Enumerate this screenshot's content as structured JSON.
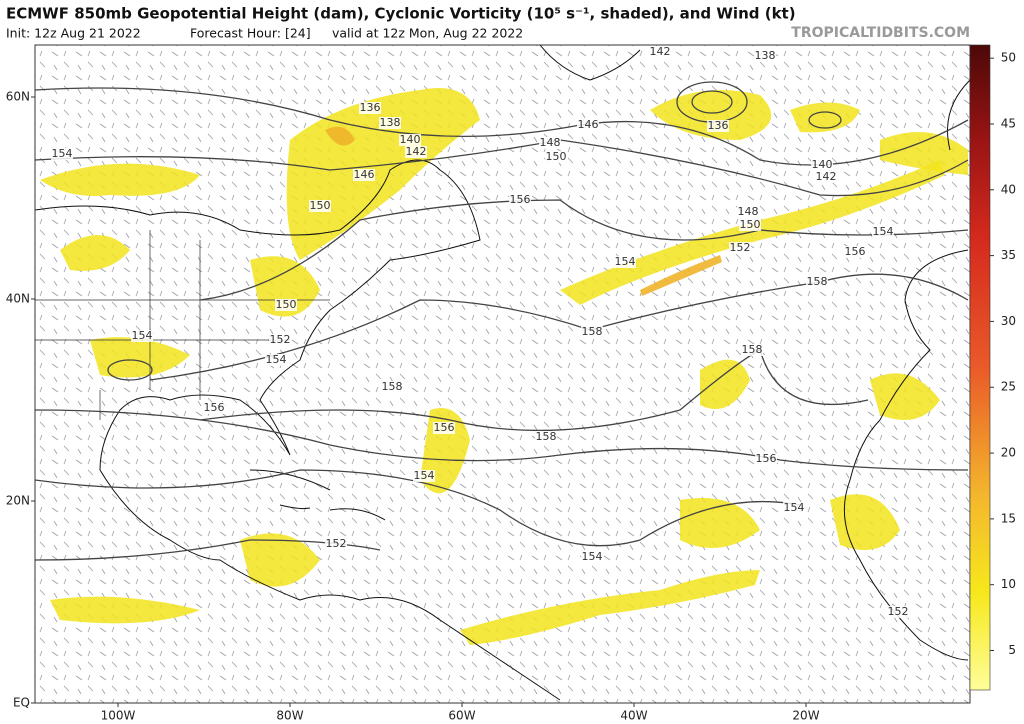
{
  "header": {
    "title": "ECMWF 850mb Geopotential Height (dam), Cyclonic Vorticity (10⁵ s⁻¹, shaded), and Wind (kt)",
    "init": "Init: 12z Aug 21 2022",
    "forecast_hour": "Forecast Hour: [24]",
    "valid": "valid at 12z Mon, Aug 22 2022",
    "site": "TROPICALTIDBITS.COM"
  },
  "map": {
    "lat_ticks": [
      {
        "value": 60,
        "label": "60N"
      },
      {
        "value": 40,
        "label": "40N"
      },
      {
        "value": 20,
        "label": "20N"
      },
      {
        "value": 0,
        "label": "EQ"
      }
    ],
    "lon_ticks": [
      {
        "value": -100,
        "label": "100W"
      },
      {
        "value": -80,
        "label": "80W"
      },
      {
        "value": -60,
        "label": "60W"
      },
      {
        "value": -40,
        "label": "40W"
      },
      {
        "value": -20,
        "label": "20W"
      }
    ],
    "contour_labels": [
      142,
      138,
      136,
      140,
      142,
      146,
      148,
      150,
      136,
      138,
      140,
      142,
      146,
      150,
      154,
      156,
      148,
      150,
      152,
      154,
      154,
      156,
      158,
      158,
      158,
      150,
      152,
      154,
      154,
      158,
      156,
      156,
      158,
      156,
      154,
      154,
      152,
      154,
      152
    ]
  },
  "colorbar": {
    "lim": [
      2,
      51
    ],
    "ticks": [
      5,
      10,
      15,
      20,
      25,
      30,
      35,
      40,
      45,
      50
    ]
  }
}
